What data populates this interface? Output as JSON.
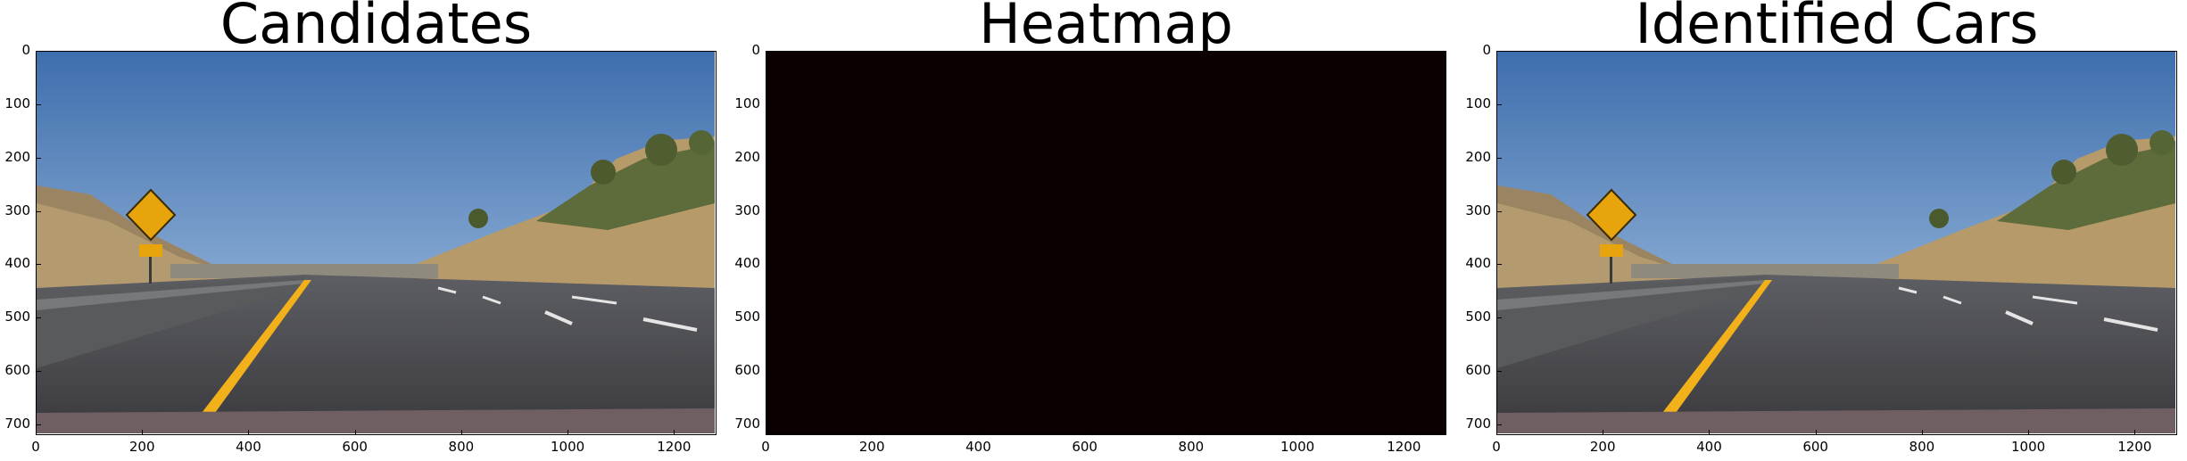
{
  "panels": [
    {
      "title": "Candidates",
      "kind": "road"
    },
    {
      "title": "Heatmap",
      "kind": "heatmap"
    },
    {
      "title": "Identified Cars",
      "kind": "road"
    }
  ],
  "axes": {
    "x_ticks": [
      "0",
      "200",
      "400",
      "600",
      "800",
      "1000",
      "1200"
    ],
    "y_ticks": [
      "0",
      "100",
      "200",
      "300",
      "400",
      "500",
      "600",
      "700"
    ]
  },
  "colors": {
    "heatmap_bg": "#0b0000",
    "sky_top": "#3f6fae",
    "sky_bottom": "#a9c7e6",
    "road": "#4a4a4f",
    "sign": "#e8a40c",
    "lane_yellow": "#f2b01a"
  }
}
